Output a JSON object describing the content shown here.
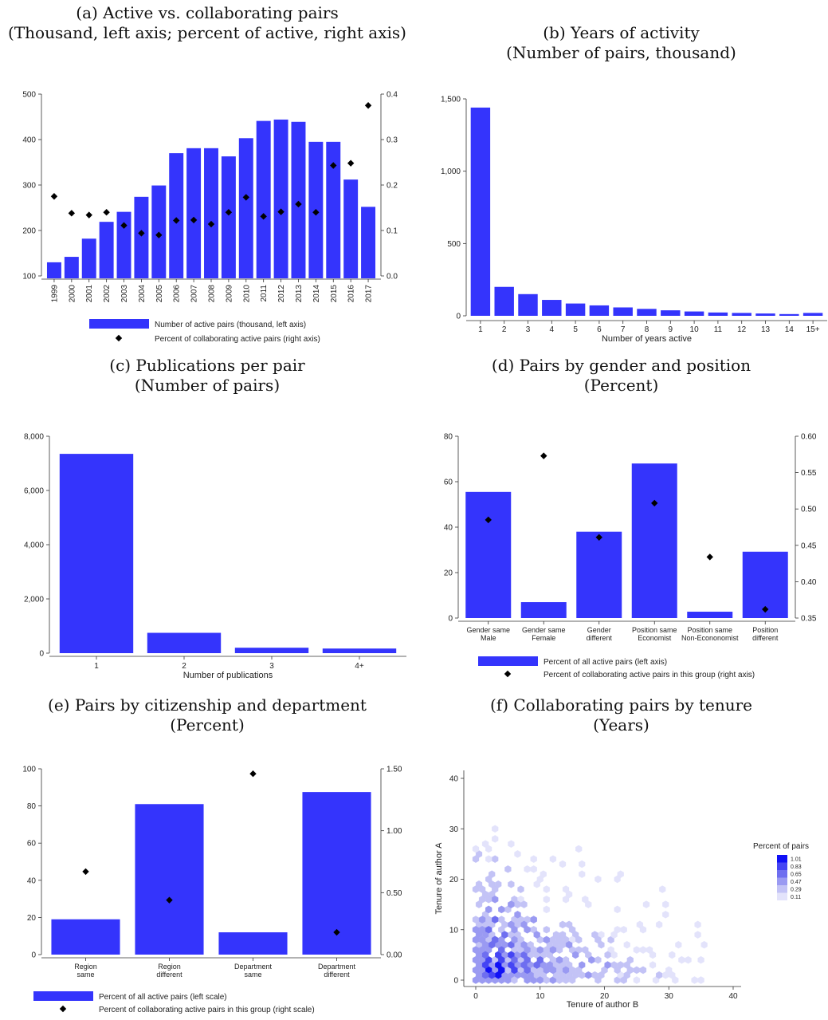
{
  "chart_data": [
    {
      "id": "a",
      "type": "bar",
      "title": "(a) Active vs. collaborating pairs",
      "subtitle": "(Thousand, left axis; percent of active, right axis)",
      "categories": [
        "1999",
        "2000",
        "2001",
        "2002",
        "2003",
        "2004",
        "2005",
        "2006",
        "2007",
        "2008",
        "2009",
        "2010",
        "2011",
        "2012",
        "2013",
        "2014",
        "2015",
        "2016",
        "2017"
      ],
      "series": [
        {
          "name": "Number of active pairs (thousand, left axis)",
          "values": [
            130,
            142,
            182,
            219,
            241,
            274,
            299,
            370,
            381,
            381,
            363,
            403,
            441,
            444,
            439,
            395,
            395,
            312,
            252
          ],
          "axis": "left",
          "kind": "bar"
        },
        {
          "name": "Percent of collaborating active pairs (right axis)",
          "values": [
            0.175,
            0.138,
            0.134,
            0.14,
            0.111,
            0.094,
            0.09,
            0.122,
            0.123,
            0.114,
            0.14,
            0.173,
            0.131,
            0.141,
            0.158,
            0.14,
            0.243,
            0.248,
            0.375
          ],
          "axis": "right",
          "kind": "marker"
        }
      ],
      "ylim": [
        100,
        500
      ],
      "yticks": [
        100,
        200,
        300,
        400,
        500
      ],
      "ytick_labels": [
        "100",
        "200",
        "300",
        "400",
        "500"
      ],
      "y2lim": [
        0,
        0.4
      ],
      "y2ticks": [
        0,
        0.1,
        0.2,
        0.3,
        0.4
      ],
      "y2tick_labels": [
        "0.0",
        "0.1",
        "0.2",
        "0.3",
        "0.4"
      ],
      "xlabel": "",
      "legend_position": "bottom",
      "bar_color": "#3434fc"
    },
    {
      "id": "b",
      "type": "bar",
      "title": "(b) Years of activity",
      "subtitle": "(Number of pairs, thousand)",
      "categories": [
        "1",
        "2",
        "3",
        "4",
        "5",
        "6",
        "7",
        "8",
        "9",
        "10",
        "11",
        "12",
        "13",
        "14",
        "15+"
      ],
      "values": [
        1440,
        200,
        150,
        110,
        85,
        72,
        58,
        48,
        38,
        30,
        23,
        20,
        16,
        12,
        20
      ],
      "ylim": [
        0,
        1500
      ],
      "yticks": [
        0,
        500,
        1000,
        1500
      ],
      "ytick_labels": [
        "0",
        "500",
        "1,000",
        "1,500"
      ],
      "xlabel": "Number of years active",
      "bar_color": "#3434fc"
    },
    {
      "id": "c",
      "type": "bar",
      "title": "(c) Publications per pair",
      "subtitle": "(Number of pairs)",
      "categories": [
        "1",
        "2",
        "3",
        "4+"
      ],
      "values": [
        7350,
        750,
        200,
        170
      ],
      "ylim": [
        0,
        8000
      ],
      "yticks": [
        0,
        2000,
        4000,
        6000,
        8000
      ],
      "ytick_labels": [
        "0",
        "2,000",
        "4,000",
        "6,000",
        "8,000"
      ],
      "xlabel": "Number of publications",
      "bar_color": "#3434fc"
    },
    {
      "id": "d",
      "type": "bar",
      "title": "(d) Pairs by gender and position",
      "subtitle": "(Percent)",
      "categories": [
        [
          "Gender same",
          "Male"
        ],
        [
          "Gender same",
          "Female"
        ],
        [
          "Gender",
          "different"
        ],
        [
          "Position same",
          "Economist"
        ],
        [
          "Position same",
          "Non-Econonomist"
        ],
        [
          "Position",
          "different"
        ]
      ],
      "series": [
        {
          "name": "Percent of all active pairs (left axis)",
          "values": [
            55.5,
            7,
            38,
            68,
            2.8,
            29.2
          ],
          "axis": "left",
          "kind": "bar"
        },
        {
          "name": "Percent of collaborating active pairs in this group (right axis)",
          "values": [
            0.485,
            0.573,
            0.461,
            0.508,
            0.434,
            0.362
          ],
          "axis": "right",
          "kind": "marker"
        }
      ],
      "ylim": [
        0,
        80
      ],
      "yticks": [
        0,
        20,
        40,
        60,
        80
      ],
      "ytick_labels": [
        "0",
        "20",
        "40",
        "60",
        "80"
      ],
      "y2lim": [
        0.35,
        0.6
      ],
      "y2ticks": [
        0.35,
        0.4,
        0.45,
        0.5,
        0.55,
        0.6
      ],
      "y2tick_labels": [
        "0.35",
        "0.40",
        "0.45",
        "0.50",
        "0.55",
        "0.60"
      ],
      "legend_position": "bottom",
      "bar_color": "#3434fc"
    },
    {
      "id": "e",
      "type": "bar",
      "title": "(e) Pairs by citizenship and department",
      "subtitle": "(Percent)",
      "categories": [
        [
          "Region",
          "same"
        ],
        [
          "Region",
          "different"
        ],
        [
          "Department",
          "same"
        ],
        [
          "Department",
          "different"
        ]
      ],
      "series": [
        {
          "name": "Percent of all active pairs (left scale)",
          "values": [
            19,
            81,
            12,
            87.5
          ],
          "axis": "left",
          "kind": "bar"
        },
        {
          "name": "Percent of collaborating active pairs in this group (right scale)",
          "values": [
            0.67,
            0.44,
            1.46,
            0.18
          ],
          "axis": "right",
          "kind": "marker"
        }
      ],
      "ylim": [
        0,
        100
      ],
      "yticks": [
        0,
        20,
        40,
        60,
        80,
        100
      ],
      "ytick_labels": [
        "0",
        "20",
        "40",
        "60",
        "80",
        "100"
      ],
      "y2lim": [
        0,
        1.5
      ],
      "y2ticks": [
        0,
        0.5,
        1,
        1.5
      ],
      "y2tick_labels": [
        "0.00",
        "0.50",
        "1.00",
        "1.50"
      ],
      "legend_position": "bottom",
      "bar_color": "#3434fc"
    },
    {
      "id": "f",
      "type": "heatmap",
      "title": "(f) Collaborating pairs by tenure",
      "subtitle": "(Years)",
      "xlabel": "Tenure of author B",
      "ylabel": "Tenure of author A",
      "xlim": [
        0,
        40
      ],
      "ylim": [
        0,
        40
      ],
      "xticks": [
        0,
        10,
        20,
        30,
        40
      ],
      "yticks": [
        0,
        10,
        20,
        30,
        40
      ],
      "legend_title": "Percent of pairs",
      "legend_levels": [
        "1.01",
        "0.83",
        "0.65",
        "0.47",
        "0.29",
        "0.11"
      ],
      "legend_colors": [
        "#1010f6",
        "#4545f4",
        "#6e6ef0",
        "#9a9af2",
        "#c3c3f6",
        "#e3e3fb"
      ],
      "cells": [
        [
          3,
          3,
          1.01
        ],
        [
          2,
          2,
          1.01
        ],
        [
          4,
          2,
          0.95
        ],
        [
          3,
          1,
          0.95
        ],
        [
          2,
          4,
          0.9
        ],
        [
          1,
          3,
          0.9
        ],
        [
          5,
          3,
          0.85
        ],
        [
          4,
          4,
          0.85
        ],
        [
          2,
          1,
          0.83
        ],
        [
          3,
          5,
          0.83
        ],
        [
          6,
          2,
          0.83
        ],
        [
          5,
          5,
          0.78
        ],
        [
          6,
          4,
          0.72
        ],
        [
          7,
          3,
          0.72
        ],
        [
          4,
          6,
          0.72
        ],
        [
          1,
          5,
          0.7
        ],
        [
          8,
          2,
          0.7
        ],
        [
          2,
          7,
          0.68
        ],
        [
          3,
          8,
          0.68
        ],
        [
          1,
          1,
          0.7
        ],
        [
          7,
          5,
          0.65
        ],
        [
          8,
          4,
          0.65
        ],
        [
          9,
          3,
          0.65
        ],
        [
          5,
          7,
          0.6
        ],
        [
          4,
          9,
          0.6
        ],
        [
          2,
          10,
          0.6
        ],
        [
          3,
          12,
          0.6
        ],
        [
          4,
          14,
          0.55
        ],
        [
          5,
          15,
          0.55
        ],
        [
          6,
          13,
          0.55
        ],
        [
          6,
          8,
          0.55
        ],
        [
          7,
          7,
          0.55
        ],
        [
          8,
          6,
          0.55
        ],
        [
          10,
          4,
          0.6
        ],
        [
          11,
          3,
          0.55
        ],
        [
          12,
          2,
          0.55
        ],
        [
          10,
          6,
          0.5
        ],
        [
          13,
          4,
          0.5
        ],
        [
          14,
          2,
          0.5
        ],
        [
          12,
          6,
          0.45
        ],
        [
          9,
          9,
          0.47
        ],
        [
          7,
          11,
          0.47
        ],
        [
          1,
          8,
          0.5
        ],
        [
          1,
          12,
          0.45
        ],
        [
          2,
          14,
          0.45
        ],
        [
          3,
          16,
          0.4
        ],
        [
          15,
          5,
          0.45
        ],
        [
          16,
          3,
          0.45
        ],
        [
          17,
          1,
          0.4
        ],
        [
          18,
          4,
          0.4
        ],
        [
          11,
          8,
          0.4
        ],
        [
          9,
          12,
          0.4
        ],
        [
          8,
          10,
          0.45
        ],
        [
          6,
          10,
          0.5
        ],
        [
          14,
          7,
          0.4
        ],
        [
          20,
          3,
          0.4
        ],
        [
          22,
          2,
          0.35
        ],
        [
          24,
          4,
          0.3
        ],
        [
          26,
          2,
          0.3
        ],
        [
          5,
          11,
          0.5
        ]
      ],
      "scatter_pairs": 2200
    }
  ]
}
